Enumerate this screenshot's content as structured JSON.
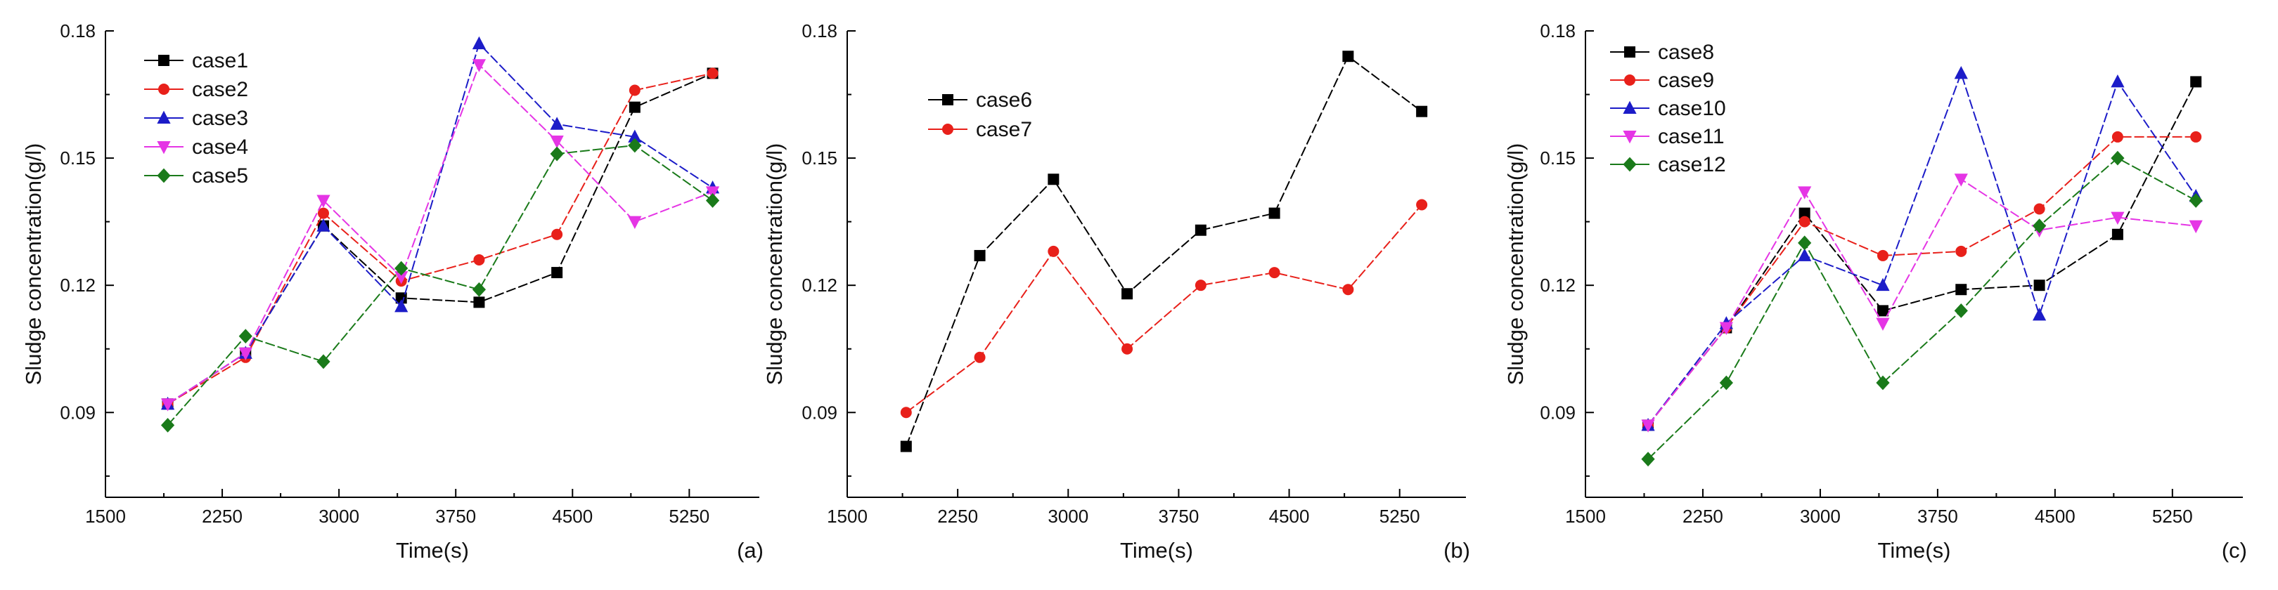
{
  "chart_data": [
    {
      "type": "line",
      "panel_label": "(a)",
      "xlabel": "Time(s)",
      "ylabel": "Sludge concentration(g/l)",
      "xlim": [
        1500,
        5700
      ],
      "ylim": [
        0.07,
        0.18
      ],
      "xticks": [
        "1500",
        "2250",
        "3000",
        "3750",
        "4500",
        "5250"
      ],
      "yticks": [
        "0.09",
        "0.12",
        "0.15",
        "0.18"
      ],
      "legend": "top-left",
      "x": [
        1900,
        2400,
        2900,
        3400,
        3900,
        4400,
        4900,
        5400
      ],
      "series": [
        {
          "name": "case1",
          "color": "#000000",
          "marker": "square",
          "values": [
            0.092,
            0.104,
            0.134,
            0.117,
            0.116,
            0.123,
            0.162,
            0.17
          ]
        },
        {
          "name": "case2",
          "color": "#e8201a",
          "marker": "circle",
          "values": [
            0.092,
            0.103,
            0.137,
            0.121,
            0.126,
            0.132,
            0.166,
            0.17
          ]
        },
        {
          "name": "case3",
          "color": "#1c1cc8",
          "marker": "triangle-up",
          "values": [
            0.092,
            0.104,
            0.134,
            0.115,
            0.177,
            0.158,
            0.155,
            0.143
          ]
        },
        {
          "name": "case4",
          "color": "#e535e5",
          "marker": "triangle-down",
          "values": [
            0.092,
            0.104,
            0.14,
            0.122,
            0.172,
            0.154,
            0.135,
            0.142
          ]
        },
        {
          "name": "case5",
          "color": "#1a7a1a",
          "marker": "diamond",
          "values": [
            0.087,
            0.108,
            0.102,
            0.124,
            0.119,
            0.151,
            0.153,
            0.14
          ]
        }
      ]
    },
    {
      "type": "line",
      "panel_label": "(b)",
      "xlabel": "Time(s)",
      "ylabel": "Sludge concentration(g/l)",
      "xlim": [
        1500,
        5700
      ],
      "ylim": [
        0.07,
        0.18
      ],
      "xticks": [
        "1500",
        "2250",
        "3000",
        "3750",
        "4500",
        "5250"
      ],
      "yticks": [
        "0.09",
        "0.12",
        "0.15",
        "0.18"
      ],
      "legend": "top-left",
      "x": [
        1900,
        2400,
        2900,
        3400,
        3900,
        4400,
        4900,
        5400
      ],
      "series": [
        {
          "name": "case6",
          "color": "#000000",
          "marker": "square",
          "values": [
            0.082,
            0.127,
            0.145,
            0.118,
            0.133,
            0.137,
            0.174,
            0.161
          ]
        },
        {
          "name": "case7",
          "color": "#e8201a",
          "marker": "circle",
          "values": [
            0.09,
            0.103,
            0.128,
            0.105,
            0.12,
            0.123,
            0.119,
            0.139
          ]
        }
      ]
    },
    {
      "type": "line",
      "panel_label": "(c)",
      "xlabel": "Time(s)",
      "ylabel": "Sludge concentration(g/l)",
      "xlim": [
        1500,
        5700
      ],
      "ylim": [
        0.07,
        0.18
      ],
      "xticks": [
        "1500",
        "2250",
        "3000",
        "3750",
        "4500",
        "5250"
      ],
      "yticks": [
        "0.09",
        "0.12",
        "0.15",
        "0.18"
      ],
      "legend": "top-left",
      "x": [
        1900,
        2400,
        2900,
        3400,
        3900,
        4400,
        4900,
        5400
      ],
      "series": [
        {
          "name": "case8",
          "color": "#000000",
          "marker": "square",
          "values": [
            0.087,
            0.11,
            0.137,
            0.114,
            0.119,
            0.12,
            0.132,
            0.168
          ]
        },
        {
          "name": "case9",
          "color": "#e8201a",
          "marker": "circle",
          "values": [
            0.087,
            0.11,
            0.135,
            0.127,
            0.128,
            0.138,
            0.155,
            0.155
          ]
        },
        {
          "name": "case10",
          "color": "#1c1cc8",
          "marker": "triangle-up",
          "values": [
            0.087,
            0.111,
            0.127,
            0.12,
            0.17,
            0.113,
            0.168,
            0.141
          ]
        },
        {
          "name": "case11",
          "color": "#e535e5",
          "marker": "triangle-down",
          "values": [
            0.087,
            0.11,
            0.142,
            0.111,
            0.145,
            0.133,
            0.136,
            0.134
          ]
        },
        {
          "name": "case12",
          "color": "#1a7a1a",
          "marker": "diamond",
          "values": [
            0.079,
            0.097,
            0.13,
            0.097,
            0.114,
            0.134,
            0.15,
            0.14
          ]
        }
      ]
    }
  ]
}
